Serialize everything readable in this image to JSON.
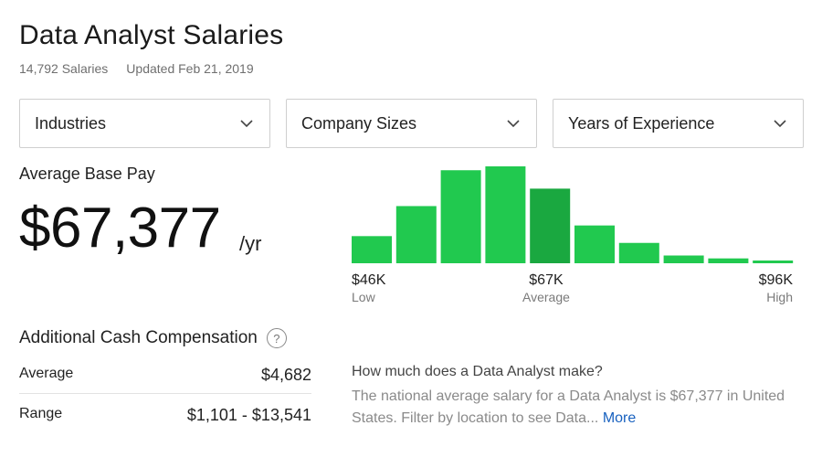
{
  "header": {
    "title": "Data Analyst Salaries",
    "salary_count": "14,792 Salaries",
    "updated": "Updated Feb 21, 2019"
  },
  "filters": [
    {
      "label": "Industries"
    },
    {
      "label": "Company Sizes"
    },
    {
      "label": "Years of Experience"
    }
  ],
  "pay": {
    "label": "Average Base Pay",
    "value": "$67,377",
    "unit": "/yr"
  },
  "chart_data": {
    "type": "bar",
    "series_color": "#21c94f",
    "highlight_color": "#1aa840",
    "highlight_index": 4,
    "relative_frequency": [
      0.28,
      0.59,
      0.96,
      1.0,
      0.77,
      0.39,
      0.21,
      0.08,
      0.05,
      0.02
    ],
    "ticks": [
      {
        "value": "$46K",
        "sub": "Low"
      },
      {
        "value": "$67K",
        "sub": "Average"
      },
      {
        "value": "$96K",
        "sub": "High"
      }
    ]
  },
  "cash": {
    "title": "Additional Cash Compensation",
    "help_glyph": "?",
    "average_label": "Average",
    "average_value": "$4,682",
    "range_label": "Range",
    "range_value": "$1,101 - $13,541"
  },
  "info": {
    "question": "How much does a Data Analyst make?",
    "body": "The national average salary for a Data Analyst is $67,377 in United States. Filter by location to see Data...",
    "more": "More"
  }
}
